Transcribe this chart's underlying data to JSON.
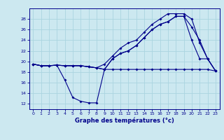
{
  "xlabel": "Graphe des températures (°c)",
  "bg_color": "#cce8f0",
  "grid_color": "#aad4e0",
  "line_color": "#00008b",
  "xlim": [
    -0.5,
    23.5
  ],
  "ylim": [
    11,
    30
  ],
  "yticks": [
    12,
    14,
    16,
    18,
    20,
    22,
    24,
    26,
    28
  ],
  "xticks": [
    0,
    1,
    2,
    3,
    4,
    5,
    6,
    7,
    8,
    9,
    10,
    11,
    12,
    13,
    14,
    15,
    16,
    17,
    18,
    19,
    20,
    21,
    22,
    23
  ],
  "series": {
    "flat": {
      "x": [
        0,
        1,
        2,
        3,
        4,
        5,
        6,
        7,
        8,
        9,
        10,
        11,
        12,
        13,
        14,
        15,
        16,
        17,
        18,
        19,
        20,
        21,
        22,
        23
      ],
      "y": [
        19.5,
        19.2,
        19.2,
        19.3,
        19.2,
        19.2,
        19.2,
        19.0,
        18.8,
        18.5,
        18.5,
        18.5,
        18.5,
        18.5,
        18.5,
        18.5,
        18.5,
        18.5,
        18.5,
        18.5,
        18.5,
        18.5,
        18.5,
        18.2
      ]
    },
    "dip": {
      "x": [
        0,
        1,
        2,
        3,
        4,
        5,
        6,
        7,
        8,
        9,
        10,
        11,
        12,
        13,
        14,
        15,
        16,
        17,
        18,
        19,
        20,
        21,
        22,
        23
      ],
      "y": [
        19.5,
        19.2,
        19.2,
        19.3,
        16.5,
        13.2,
        12.5,
        12.2,
        12.2,
        18.5,
        20.5,
        21.5,
        22.0,
        23.0,
        24.5,
        26.0,
        27.0,
        27.5,
        28.5,
        28.5,
        24.0,
        20.5,
        20.5,
        18.2
      ]
    },
    "rise1": {
      "x": [
        0,
        1,
        2,
        3,
        4,
        5,
        6,
        7,
        8,
        9,
        10,
        11,
        12,
        13,
        14,
        15,
        16,
        17,
        18,
        19,
        20,
        21,
        22,
        23
      ],
      "y": [
        19.5,
        19.2,
        19.2,
        19.3,
        19.2,
        19.2,
        19.2,
        19.0,
        18.8,
        18.5,
        20.5,
        21.5,
        22.0,
        23.0,
        24.5,
        26.0,
        27.0,
        27.5,
        28.5,
        28.5,
        26.5,
        24.0,
        20.5,
        18.2
      ]
    },
    "rise2": {
      "x": [
        0,
        1,
        2,
        3,
        4,
        5,
        6,
        7,
        8,
        9,
        10,
        11,
        12,
        13,
        14,
        15,
        16,
        17,
        18,
        19,
        20,
        21,
        22,
        23
      ],
      "y": [
        19.5,
        19.2,
        19.2,
        19.3,
        19.2,
        19.2,
        19.2,
        19.0,
        18.8,
        19.5,
        21.0,
        22.5,
        23.5,
        24.0,
        25.5,
        27.0,
        28.0,
        29.0,
        29.0,
        29.0,
        28.0,
        23.5,
        20.5,
        18.2
      ]
    }
  }
}
